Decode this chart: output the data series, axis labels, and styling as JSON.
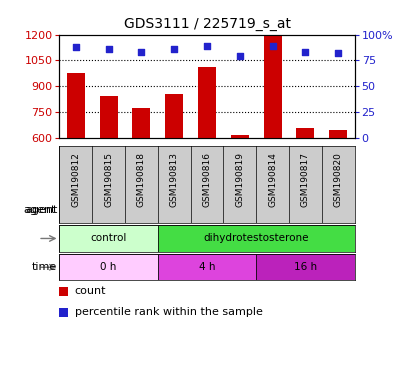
{
  "title": "GDS3111 / 225719_s_at",
  "samples": [
    "GSM190812",
    "GSM190815",
    "GSM190818",
    "GSM190813",
    "GSM190816",
    "GSM190819",
    "GSM190814",
    "GSM190817",
    "GSM190820"
  ],
  "counts": [
    975,
    845,
    775,
    855,
    1010,
    620,
    1195,
    660,
    645
  ],
  "percentiles": [
    88,
    86,
    83,
    86,
    89,
    79,
    89,
    83,
    82
  ],
  "ylim_left": [
    600,
    1200
  ],
  "ylim_right": [
    0,
    100
  ],
  "yticks_left": [
    600,
    750,
    900,
    1050,
    1200
  ],
  "yticks_right": [
    0,
    25,
    50,
    75,
    100
  ],
  "bar_color": "#cc0000",
  "dot_color": "#2222cc",
  "bar_width": 0.55,
  "agent_labels": [
    {
      "label": "control",
      "start": 0,
      "end": 3,
      "color": "#ccffcc"
    },
    {
      "label": "dihydrotestosterone",
      "start": 3,
      "end": 9,
      "color": "#44dd44"
    }
  ],
  "time_labels": [
    {
      "label": "0 h",
      "start": 0,
      "end": 3,
      "color": "#ffccff"
    },
    {
      "label": "4 h",
      "start": 3,
      "end": 6,
      "color": "#dd44dd"
    },
    {
      "label": "16 h",
      "start": 6,
      "end": 9,
      "color": "#bb22bb"
    }
  ],
  "agent_row_label": "agent",
  "time_row_label": "time",
  "legend_count_label": "count",
  "legend_pct_label": "percentile rank within the sample",
  "tick_label_color_left": "#cc0000",
  "tick_label_color_right": "#2222cc",
  "bg_color": "#ffffff",
  "plot_bg_color": "#ffffff",
  "tick_area_bg": "#cccccc",
  "grid_linestyle": ":",
  "grid_color": "#000000",
  "grid_linewidth": 0.8
}
